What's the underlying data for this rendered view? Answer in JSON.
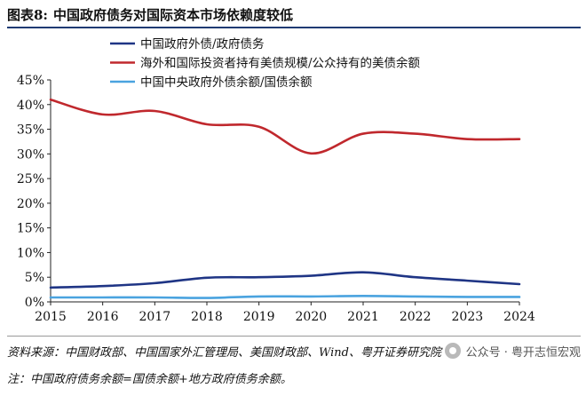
{
  "figure": {
    "label": "图表8:",
    "title": "中国政府债务对国际资本市场依赖度较低"
  },
  "notes": {
    "source": "资料来源：中国财政部、中国国家外汇管理局、美国财政部、Wind、粤开证券研究院",
    "note": "注：中国政府债务余额=国债余额+地方政府债务余额。",
    "watermark": "公众号 · 粤开志恒宏观",
    "watermark_icon": "wechat-icon"
  },
  "colors": {
    "navy": "#1f3585",
    "red": "#c0282d",
    "lightblue": "#4aa3df",
    "title_rule": "#1f3b73"
  },
  "chart_data": {
    "type": "line",
    "title": "",
    "xlabel": "",
    "ylabel": "",
    "x": [
      "2015",
      "2016",
      "2017",
      "2018",
      "2019",
      "2020",
      "2021",
      "2022",
      "2023",
      "2024"
    ],
    "ylim": [
      0,
      45
    ],
    "yticks": [
      "0%",
      "5%",
      "10%",
      "15%",
      "20%",
      "25%",
      "30%",
      "35%",
      "40%",
      "45%"
    ],
    "ytick_values": [
      0,
      5,
      10,
      15,
      20,
      25,
      30,
      35,
      40,
      45
    ],
    "grid": false,
    "legend_position": "top-left",
    "series": [
      {
        "name": "中国政府外债/政府债务",
        "color": "#1f3585",
        "values": [
          2.9,
          3.2,
          3.8,
          4.9,
          5.0,
          5.3,
          6.0,
          5.0,
          4.3,
          3.6
        ]
      },
      {
        "name": "海外和国际投资者持有美债规模/公众持有的美债余额",
        "color": "#c0282d",
        "values": [
          41.0,
          38.0,
          38.7,
          36.0,
          35.5,
          30.1,
          34.1,
          34.1,
          33.0,
          33.0
        ]
      },
      {
        "name": "中国中央政府外债余额/国债余额",
        "color": "#4aa3df",
        "values": [
          0.9,
          0.9,
          0.9,
          0.8,
          1.1,
          1.1,
          1.2,
          1.1,
          1.0,
          1.0
        ]
      }
    ]
  }
}
